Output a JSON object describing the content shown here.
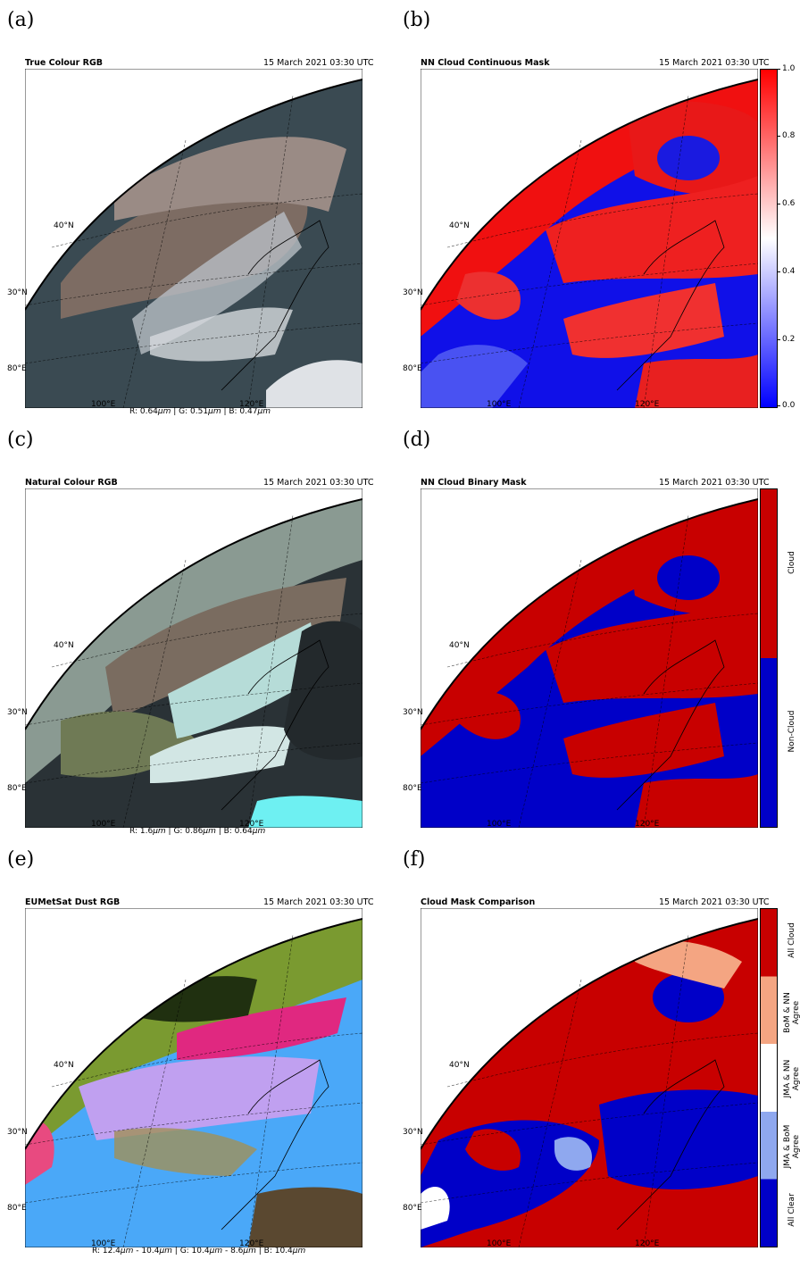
{
  "panels": {
    "a": {
      "letter": "(a)",
      "title": "True Colour RGB",
      "date": "15 March 2021 03:30 UTC",
      "caption_parts": [
        "R: 0.64",
        "μm",
        " | G: 0.51",
        "μm",
        " | B: 0.47",
        "μm"
      ]
    },
    "b": {
      "letter": "(b)",
      "title": "NN Cloud Continuous Mask",
      "date": "15 March 2021 03:30 UTC",
      "colorbar_ticks": [
        "1.0",
        "0.8",
        "0.6",
        "0.4",
        "0.2",
        "0.0"
      ]
    },
    "c": {
      "letter": "(c)",
      "title": "Natural Colour RGB",
      "date": "15 March 2021 03:30 UTC",
      "caption_parts": [
        "R: 1.6",
        "μm",
        " | G: 0.86",
        "μm",
        " | B: 0.64",
        "μm"
      ]
    },
    "d": {
      "letter": "(d)",
      "title": "NN Cloud Binary Mask",
      "date": "15 March 2021 03:30 UTC",
      "colorbar_labels": [
        "Cloud",
        "Non-Cloud"
      ]
    },
    "e": {
      "letter": "(e)",
      "title": "EUMetSat Dust RGB",
      "date": "15 March 2021 03:30 UTC",
      "caption_parts": [
        "R: 12.4",
        "μm",
        " - 10.4",
        "μm",
        " | G: 10.4",
        "μm",
        " - 8.6",
        "μm",
        " | B: 10.4",
        "μm"
      ]
    },
    "f": {
      "letter": "(f)",
      "title": "Cloud Mask Comparison",
      "date": "15 March 2021 03:30 UTC",
      "colorbar_labels": [
        "All Cloud",
        "BoM & NN Agree",
        "JMA & NN Agree",
        "JMA & BoM Agree",
        "All Clear"
      ]
    }
  },
  "axes": {
    "lat_labels": [
      "40°N",
      "30°N",
      "80°E"
    ],
    "lon_labels": [
      "100°E",
      "120°E"
    ]
  },
  "colors": {
    "cloud_red": "#c80000",
    "clear_blue": "#0000c8",
    "bom_orange": "#f4a582",
    "jma_white": "#ffffff",
    "jma_bom_blue": "#8fa8ef"
  }
}
